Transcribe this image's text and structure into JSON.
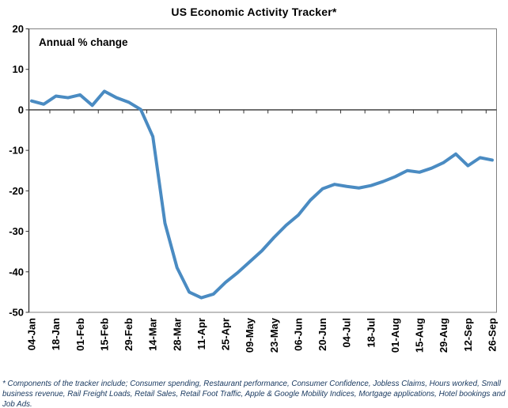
{
  "title": "US Economic Activity Tracker*",
  "footnote": "* Components of the tracker include; Consumer spending, Restaurant performance, Consumer Confidence, Jobless Claims, Hours worked, Small business revenue, Rail Freight Loads, Retail Sales, Retail Foot Traffic, Apple & Google Mobility Indices, Mortgage applications, Hotel bookings and Job Ads.",
  "chart_data": {
    "type": "line",
    "title": "US Economic Activity Tracker*",
    "annotation": "Annual % change",
    "xlabel": "",
    "ylabel": "Annual % change",
    "ylim": [
      -50,
      20
    ],
    "y_ticks": [
      20,
      10,
      0,
      -10,
      -20,
      -30,
      -40,
      -50
    ],
    "grid": false,
    "legend": "none",
    "line_color": "#4A8BC2",
    "axis_color": "#333333",
    "frame_color": "#808080",
    "x": [
      "04-Jan",
      "11-Jan",
      "18-Jan",
      "25-Jan",
      "01-Feb",
      "08-Feb",
      "15-Feb",
      "22-Feb",
      "29-Feb",
      "07-Mar",
      "14-Mar",
      "21-Mar",
      "28-Mar",
      "04-Apr",
      "11-Apr",
      "18-Apr",
      "25-Apr",
      "02-May",
      "09-May",
      "16-May",
      "23-May",
      "30-May",
      "06-Jun",
      "13-Jun",
      "20-Jun",
      "27-Jun",
      "04-Jul",
      "11-Jul",
      "18-Jul",
      "25-Jul",
      "01-Aug",
      "08-Aug",
      "15-Aug",
      "22-Aug",
      "29-Aug",
      "05-Sep",
      "12-Sep",
      "19-Sep",
      "26-Sep"
    ],
    "x_tick_labels": [
      "04-Jan",
      "18-Jan",
      "01-Feb",
      "15-Feb",
      "29-Feb",
      "14-Mar",
      "28-Mar",
      "11-Apr",
      "25-Apr",
      "09-May",
      "23-May",
      "06-Jun",
      "20-Jun",
      "04-Jul",
      "18-Jul",
      "01-Aug",
      "15-Aug",
      "29-Aug",
      "12-Sep",
      "26-Sep"
    ],
    "values": [
      2.2,
      1.4,
      3.4,
      3.0,
      3.7,
      1.1,
      4.6,
      3.0,
      1.9,
      0.1,
      -6.6,
      -28.0,
      -39.0,
      -45.0,
      -46.4,
      -45.5,
      -42.6,
      -40.2,
      -37.5,
      -34.8,
      -31.5,
      -28.5,
      -26.0,
      -22.3,
      -19.5,
      -18.4,
      -18.9,
      -19.3,
      -18.7,
      -17.7,
      -16.5,
      -15.0,
      -15.4,
      -14.4,
      -13.0,
      -10.9,
      -13.8,
      -11.8,
      -12.4
    ]
  }
}
